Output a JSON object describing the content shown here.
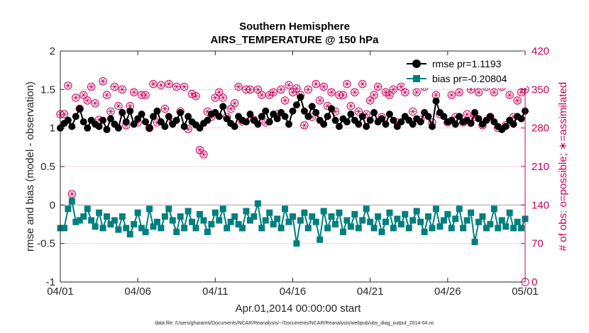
{
  "chart_data": {
    "type": "line",
    "title": "Southern Hemisphere",
    "subtitle": "AIRS_TEMPERATURE @ 150 hPa",
    "xlabel": "Apr.01,2014 00:00:00 start",
    "ylabel": "rmse and bias (model - observation)",
    "ylabel_right": "# of obs: o=possible; ∗=assimilated",
    "footnote": "data file: /Users/gharamti/Documents/NCAR/Reanalysis/~/Documents/NCAR/Reanalysis/webpub/obs_diag_output_2014-04.nc",
    "xlim": [
      0,
      30
    ],
    "ylim": [
      -1,
      2
    ],
    "ylim_right": [
      0,
      420
    ],
    "x_ticks": [
      0,
      5,
      10,
      15,
      20,
      25,
      30
    ],
    "x_tick_labels": [
      "04/01",
      "04/06",
      "04/11",
      "04/16",
      "04/21",
      "04/26",
      "05/01"
    ],
    "y_ticks": [
      -1,
      -0.5,
      0,
      0.5,
      1,
      1.5,
      2
    ],
    "y_tick_labels": [
      "-1",
      "-0.5",
      "0",
      "0.5",
      "1",
      "1.5",
      "2"
    ],
    "y_right_ticks": [
      0,
      70,
      140,
      210,
      280,
      350,
      420
    ],
    "y_right_tick_labels": [
      "0",
      "70",
      "140",
      "210",
      "280",
      "350",
      "420"
    ],
    "colors": {
      "rmse": "#000000",
      "bias": "#007f7f",
      "obs": "#c8005a",
      "zero": "#c0c0c0",
      "grid": "#f2b7c8"
    },
    "legend": {
      "position": "top-right",
      "entries": [
        "rmse pr=1.1193",
        "bias pr=-0.20804"
      ]
    },
    "series": [
      {
        "name": "rmse pr=1.1193",
        "axis": "left",
        "x": [
          0.0,
          0.25,
          0.5,
          0.75,
          1.0,
          1.25,
          1.5,
          1.75,
          2.0,
          2.25,
          2.5,
          2.75,
          3.0,
          3.25,
          3.5,
          3.75,
          4.0,
          4.25,
          4.5,
          4.75,
          5.0,
          5.25,
          5.5,
          5.75,
          6.0,
          6.25,
          6.5,
          6.75,
          7.0,
          7.25,
          7.5,
          7.75,
          8.0,
          8.25,
          8.5,
          8.75,
          9.0,
          9.25,
          9.5,
          9.75,
          10.0,
          10.25,
          10.5,
          10.75,
          11.0,
          11.25,
          11.5,
          11.75,
          12.0,
          12.25,
          12.5,
          12.75,
          13.0,
          13.25,
          13.5,
          13.75,
          14.0,
          14.25,
          14.5,
          14.75,
          15.0,
          15.25,
          15.5,
          15.75,
          16.0,
          16.25,
          16.5,
          16.75,
          17.0,
          17.25,
          17.5,
          17.75,
          18.0,
          18.25,
          18.5,
          18.75,
          19.0,
          19.25,
          19.5,
          19.75,
          20.0,
          20.25,
          20.5,
          20.75,
          21.0,
          21.25,
          21.5,
          21.75,
          22.0,
          22.25,
          22.5,
          22.75,
          23.0,
          23.25,
          23.5,
          23.75,
          24.0,
          24.25,
          24.5,
          24.75,
          25.0,
          25.25,
          25.5,
          25.75,
          26.0,
          26.25,
          26.5,
          26.75,
          27.0,
          27.25,
          27.5,
          27.75,
          28.0,
          28.25,
          28.5,
          28.75,
          29.0,
          29.25,
          29.5,
          29.75,
          30.0
        ],
        "values": [
          1.0,
          1.06,
          1.1,
          1.02,
          1.15,
          1.25,
          1.08,
          1.0,
          1.1,
          1.05,
          1.02,
          1.1,
          0.98,
          1.12,
          1.05,
          1.0,
          1.2,
          1.08,
          1.22,
          1.05,
          1.12,
          1.18,
          1.08,
          1.0,
          1.15,
          1.22,
          1.08,
          1.02,
          1.15,
          1.05,
          1.1,
          1.2,
          1.02,
          1.15,
          1.08,
          1.04,
          1.0,
          1.06,
          1.1,
          1.18,
          1.2,
          1.15,
          1.28,
          1.12,
          1.06,
          1.02,
          1.15,
          1.1,
          1.08,
          1.18,
          1.1,
          1.05,
          1.15,
          1.22,
          1.08,
          1.18,
          1.12,
          1.2,
          1.15,
          1.05,
          1.22,
          1.3,
          1.4,
          1.22,
          1.15,
          1.28,
          1.2,
          1.1,
          1.05,
          1.15,
          1.25,
          1.1,
          1.02,
          1.12,
          1.08,
          1.18,
          1.1,
          1.05,
          1.15,
          1.02,
          1.1,
          1.2,
          1.08,
          1.12,
          1.05,
          1.18,
          1.1,
          1.02,
          1.08,
          1.15,
          1.1,
          1.05,
          1.12,
          1.08,
          1.2,
          1.15,
          1.02,
          1.35,
          1.2,
          1.15,
          1.08,
          1.1,
          1.05,
          1.15,
          1.08,
          1.1,
          1.06,
          1.2,
          1.12,
          1.05,
          1.1,
          1.15,
          1.08,
          1.02,
          0.98,
          1.02,
          1.1,
          1.05,
          1.15,
          1.12,
          1.22
        ]
      },
      {
        "name": "bias pr=-0.20804",
        "axis": "left",
        "x": [
          0.0,
          0.25,
          0.5,
          0.75,
          1.0,
          1.25,
          1.5,
          1.75,
          2.0,
          2.25,
          2.5,
          2.75,
          3.0,
          3.25,
          3.5,
          3.75,
          4.0,
          4.25,
          4.5,
          4.75,
          5.0,
          5.25,
          5.5,
          5.75,
          6.0,
          6.25,
          6.5,
          6.75,
          7.0,
          7.25,
          7.5,
          7.75,
          8.0,
          8.25,
          8.5,
          8.75,
          9.0,
          9.25,
          9.5,
          9.75,
          10.0,
          10.25,
          10.5,
          10.75,
          11.0,
          11.25,
          11.5,
          11.75,
          12.0,
          12.25,
          12.5,
          12.75,
          13.0,
          13.25,
          13.5,
          13.75,
          14.0,
          14.25,
          14.5,
          14.75,
          15.0,
          15.25,
          15.5,
          15.75,
          16.0,
          16.25,
          16.5,
          16.75,
          17.0,
          17.25,
          17.5,
          17.75,
          18.0,
          18.25,
          18.5,
          18.75,
          19.0,
          19.25,
          19.5,
          19.75,
          20.0,
          20.25,
          20.5,
          20.75,
          21.0,
          21.25,
          21.5,
          21.75,
          22.0,
          22.25,
          22.5,
          22.75,
          23.0,
          23.25,
          23.5,
          23.75,
          24.0,
          24.25,
          24.5,
          24.75,
          25.0,
          25.25,
          25.5,
          25.75,
          26.0,
          26.25,
          26.5,
          26.75,
          27.0,
          27.25,
          27.5,
          27.75,
          28.0,
          28.25,
          28.5,
          28.75,
          29.0,
          29.25,
          29.5,
          29.75,
          30.0
        ],
        "values": [
          -0.3,
          -0.3,
          -0.05,
          0.05,
          -0.22,
          -0.2,
          -0.15,
          -0.05,
          -0.2,
          -0.28,
          -0.1,
          -0.3,
          -0.15,
          -0.25,
          -0.2,
          -0.32,
          -0.15,
          -0.3,
          -0.38,
          -0.25,
          -0.1,
          -0.3,
          -0.35,
          -0.05,
          -0.28,
          -0.22,
          -0.3,
          -0.15,
          -0.05,
          -0.2,
          -0.35,
          -0.15,
          -0.3,
          -0.08,
          -0.22,
          -0.3,
          -0.12,
          -0.2,
          -0.35,
          -0.25,
          -0.1,
          -0.2,
          -0.05,
          -0.3,
          -0.22,
          -0.15,
          -0.25,
          -0.3,
          -0.08,
          -0.2,
          -0.15,
          0.02,
          -0.3,
          -0.2,
          -0.1,
          -0.25,
          -0.18,
          -0.3,
          -0.05,
          -0.22,
          -0.15,
          -0.5,
          -0.2,
          -0.1,
          -0.3,
          -0.15,
          -0.22,
          -0.45,
          -0.08,
          -0.3,
          -0.15,
          -0.25,
          -0.1,
          -0.35,
          -0.2,
          -0.28,
          -0.12,
          -0.3,
          -0.2,
          -0.05,
          -0.22,
          -0.3,
          -0.15,
          -0.35,
          -0.22,
          -0.1,
          -0.3,
          -0.18,
          -0.25,
          -0.12,
          -0.3,
          -0.2,
          -0.08,
          -0.22,
          -0.35,
          -0.15,
          -0.3,
          -0.05,
          -0.28,
          -0.2,
          -0.12,
          -0.3,
          -0.18,
          -0.05,
          -0.3,
          -0.2,
          -0.1,
          -0.48,
          -0.22,
          -0.15,
          -0.3,
          -0.25,
          -0.05,
          -0.3,
          -0.2,
          -0.28,
          -0.1,
          -0.3,
          -0.22,
          -0.3,
          -0.18
        ]
      },
      {
        "name": "# of obs possible",
        "axis": "right",
        "marker": "circle",
        "x": [
          0.0,
          0.25,
          0.5,
          0.75,
          1.0,
          1.25,
          1.5,
          1.75,
          2.0,
          2.25,
          2.5,
          2.75,
          3.0,
          3.25,
          3.5,
          3.75,
          4.0,
          4.25,
          4.5,
          4.75,
          5.0,
          5.25,
          5.5,
          5.75,
          6.0,
          6.25,
          6.5,
          6.75,
          7.0,
          7.25,
          7.5,
          7.75,
          8.0,
          8.25,
          8.5,
          8.75,
          9.0,
          9.25,
          9.5,
          9.75,
          10.0,
          10.25,
          10.5,
          10.75,
          11.0,
          11.25,
          11.5,
          11.75,
          12.0,
          12.25,
          12.5,
          12.75,
          13.0,
          13.25,
          13.5,
          13.75,
          14.0,
          14.25,
          14.5,
          14.75,
          15.0,
          15.25,
          15.5,
          15.75,
          16.0,
          16.25,
          16.5,
          16.75,
          17.0,
          17.25,
          17.5,
          17.75,
          18.0,
          18.25,
          18.5,
          18.75,
          19.0,
          19.25,
          19.5,
          19.75,
          20.0,
          20.25,
          20.5,
          20.75,
          21.0,
          21.25,
          21.5,
          21.75,
          22.0,
          22.25,
          22.5,
          22.75,
          23.0,
          23.25,
          23.5,
          23.75,
          24.0,
          24.25,
          24.5,
          24.75,
          25.0,
          25.25,
          25.5,
          25.75,
          26.0,
          26.25,
          26.5,
          26.75,
          27.0,
          27.25,
          27.5,
          27.75,
          28.0,
          28.25,
          28.5,
          28.75,
          29.0,
          29.25,
          29.5,
          29.75,
          30.0
        ],
        "values": [
          305,
          305,
          357,
          160,
          335,
          315,
          340,
          330,
          355,
          325,
          295,
          365,
          340,
          310,
          355,
          320,
          350,
          285,
          320,
          345,
          290,
          340,
          340,
          280,
          360,
          290,
          358,
          315,
          360,
          290,
          355,
          310,
          355,
          278,
          342,
          338,
          240,
          232,
          310,
          300,
          335,
          345,
          335,
          300,
          315,
          325,
          355,
          292,
          350,
          350,
          295,
          350,
          340,
          290,
          340,
          345,
          305,
          350,
          330,
          358,
          345,
          352,
          340,
          285,
          350,
          300,
          360,
          330,
          355,
          320,
          345,
          310,
          340,
          340,
          360,
          320,
          345,
          310,
          360,
          305,
          330,
          340,
          355,
          300,
          345,
          340,
          350,
          290,
          355,
          345,
          365,
          310,
          345,
          295,
          355,
          360,
          290,
          340,
          305,
          360,
          290,
          340,
          300,
          345,
          290,
          305,
          350,
          300,
          345,
          285,
          355,
          300,
          345,
          280,
          355,
          285,
          340,
          300,
          330,
          345,
          350
        ]
      },
      {
        "name": "# of obs assimilated",
        "axis": "right",
        "marker": "asterisk",
        "x": [
          0.0,
          0.25,
          0.5,
          0.75,
          1.0,
          1.25,
          1.5,
          1.75,
          2.0,
          2.25,
          2.5,
          2.75,
          3.0,
          3.25,
          3.5,
          3.75,
          4.0,
          4.25,
          4.5,
          4.75,
          5.0,
          5.25,
          5.5,
          5.75,
          6.0,
          6.25,
          6.5,
          6.75,
          7.0,
          7.25,
          7.5,
          7.75,
          8.0,
          8.25,
          8.5,
          8.75,
          9.0,
          9.25,
          9.5,
          9.75,
          10.0,
          10.25,
          10.5,
          10.75,
          11.0,
          11.25,
          11.5,
          11.75,
          12.0,
          12.25,
          12.5,
          12.75,
          13.0,
          13.25,
          13.5,
          13.75,
          14.0,
          14.25,
          14.5,
          14.75,
          15.0,
          15.25,
          15.5,
          15.75,
          16.0,
          16.25,
          16.5,
          16.75,
          17.0,
          17.25,
          17.5,
          17.75,
          18.0,
          18.25,
          18.5,
          18.75,
          19.0,
          19.25,
          19.5,
          19.75,
          20.0,
          20.25,
          20.5,
          20.75,
          21.0,
          21.25,
          21.5,
          21.75,
          22.0,
          22.25,
          22.5,
          22.75,
          23.0,
          23.25,
          23.5,
          23.75,
          24.0,
          24.25,
          24.5,
          24.75,
          25.0,
          25.25,
          25.5,
          25.75,
          26.0,
          26.25,
          26.5,
          26.75,
          27.0,
          27.25,
          27.5,
          27.75,
          28.0,
          28.25,
          28.5,
          28.75,
          29.0,
          29.25,
          29.5,
          29.75,
          30.0
        ],
        "values": [
          305,
          305,
          357,
          160,
          335,
          315,
          340,
          330,
          355,
          325,
          295,
          365,
          340,
          310,
          355,
          320,
          350,
          285,
          320,
          345,
          290,
          340,
          340,
          280,
          360,
          290,
          358,
          315,
          360,
          290,
          355,
          310,
          355,
          278,
          342,
          338,
          240,
          232,
          310,
          300,
          335,
          345,
          335,
          300,
          315,
          325,
          355,
          292,
          350,
          350,
          295,
          350,
          340,
          290,
          340,
          345,
          305,
          350,
          330,
          358,
          345,
          352,
          340,
          285,
          350,
          300,
          360,
          330,
          355,
          320,
          345,
          310,
          340,
          340,
          360,
          320,
          345,
          310,
          360,
          305,
          330,
          340,
          355,
          300,
          345,
          340,
          350,
          290,
          355,
          345,
          365,
          310,
          345,
          295,
          355,
          360,
          290,
          340,
          305,
          360,
          290,
          340,
          300,
          345,
          290,
          305,
          350,
          300,
          345,
          285,
          355,
          300,
          345,
          280,
          355,
          285,
          340,
          300,
          330,
          345,
          350
        ]
      }
    ]
  }
}
